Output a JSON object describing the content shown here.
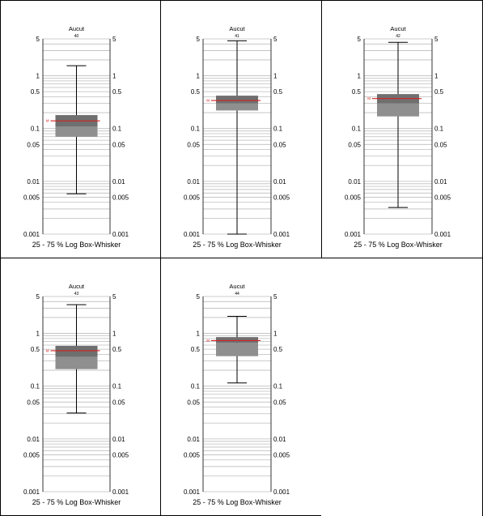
{
  "chart_data": [
    {
      "type": "boxplot",
      "title": "Aucut",
      "subtitle": "40",
      "xlabel": "25 - 75 % Log Box-Whisker",
      "yscale": "log",
      "ylim": [
        0.001,
        5
      ],
      "yticks": [
        "5",
        "1",
        "0.5",
        "0.1",
        "0.05",
        "0.01",
        "0.005",
        "0.001"
      ],
      "box": {
        "whisker_low": 0.0058,
        "q1": 0.07,
        "median": 0.11,
        "q3": 0.18,
        "whisker_high": 1.55,
        "mean": 0.14
      },
      "mean_label": "M"
    },
    {
      "type": "boxplot",
      "title": "Aucut",
      "subtitle": "41",
      "xlabel": "25 - 75 % Log Box-Whisker",
      "yscale": "log",
      "ylim": [
        0.001,
        5
      ],
      "yticks": [
        "5",
        "1",
        "0.5",
        "0.1",
        "0.05",
        "0.01",
        "0.005",
        "0.001"
      ],
      "box": {
        "whisker_low": 0.001,
        "q1": 0.22,
        "median": 0.3,
        "q3": 0.42,
        "whisker_high": 4.6,
        "mean": 0.34
      },
      "mean_label": "M"
    },
    {
      "type": "boxplot",
      "title": "Aucut",
      "subtitle": "42",
      "xlabel": "25 - 75 % Log Box-Whisker",
      "yscale": "log",
      "ylim": [
        0.001,
        5
      ],
      "yticks": [
        "5",
        "1",
        "0.5",
        "0.1",
        "0.05",
        "0.01",
        "0.005",
        "0.001"
      ],
      "box": {
        "whisker_low": 0.0032,
        "q1": 0.17,
        "median": 0.3,
        "q3": 0.45,
        "whisker_high": 4.3,
        "mean": 0.37
      },
      "mean_label": "M"
    },
    {
      "type": "boxplot",
      "title": "Aucut",
      "subtitle": "43",
      "xlabel": "25 - 75 % Log Box-Whisker",
      "yscale": "log",
      "ylim": [
        0.001,
        5
      ],
      "yticks": [
        "5",
        "1",
        "0.5",
        "0.1",
        "0.05",
        "0.01",
        "0.005",
        "0.001"
      ],
      "box": {
        "whisker_low": 0.031,
        "q1": 0.21,
        "median": 0.36,
        "q3": 0.58,
        "whisker_high": 3.5,
        "mean": 0.47
      },
      "mean_label": "M"
    },
    {
      "type": "boxplot",
      "title": "Aucut",
      "subtitle": "44",
      "xlabel": "25 - 75 % Log Box-Whisker",
      "yscale": "log",
      "ylim": [
        0.001,
        5
      ],
      "yticks": [
        "5",
        "1",
        "0.5",
        "0.1",
        "0.05",
        "0.01",
        "0.005",
        "0.001"
      ],
      "box": {
        "whisker_low": 0.115,
        "q1": 0.37,
        "median": 0.66,
        "q3": 0.85,
        "whisker_high": 2.1,
        "mean": 0.73
      },
      "mean_label": "M"
    }
  ],
  "colors": {
    "box_lower": "#8f8f8f",
    "box_upper": "#6f6f6f",
    "mean_line": "#d22222",
    "grid": "#bdbdbd",
    "whisker": "#000000"
  }
}
